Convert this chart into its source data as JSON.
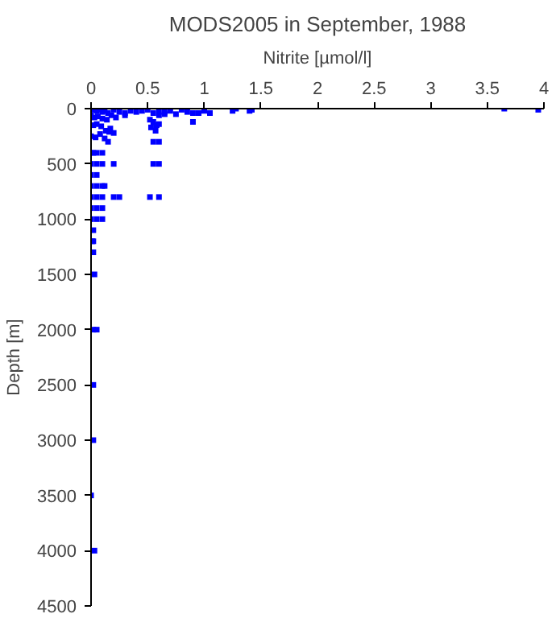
{
  "chart_data": {
    "type": "scatter",
    "title": "MODS2005 in September, 1988",
    "xlabel": "Nitrite [µmol/l]",
    "ylabel": "Depth [m]",
    "xlim": [
      0,
      4
    ],
    "ylim": [
      4500,
      0
    ],
    "xticks": [
      0,
      0.5,
      1,
      1.5,
      2,
      2.5,
      3,
      3.5,
      4
    ],
    "yticks": [
      0,
      500,
      1000,
      1500,
      2000,
      2500,
      3000,
      3500,
      4000,
      4500
    ],
    "grid": false,
    "marker": "square",
    "series": [
      {
        "color": "#0000ff",
        "x": [
          0.02,
          0.05,
          0.08,
          0.1,
          0.12,
          0.15,
          0.2,
          0.25,
          0.3,
          0.35,
          0.4,
          0.45,
          0.5,
          0.55,
          0.6,
          0.65,
          0.7,
          0.75,
          0.8,
          0.85,
          0.9,
          0.95,
          1.0,
          1.05,
          1.25,
          1.28,
          1.4,
          1.42,
          3.65,
          3.95,
          0,
          0.03,
          0.06,
          0.1,
          0.14,
          0.18,
          0.22,
          0.3,
          0.02,
          0.05,
          0.09,
          0.13,
          0.17,
          0.0,
          0.04,
          0.08,
          0.12,
          0.16,
          0.2,
          0.6,
          0.65,
          0.9,
          0.52,
          0.55,
          0.58,
          0.53,
          0.57,
          0.6,
          0.55,
          0.6,
          0.55,
          0.6,
          0.52,
          0.6,
          0,
          0.02,
          0.05,
          0.1,
          0.15,
          0,
          0.05,
          0.1,
          0.2,
          0,
          0.05,
          0,
          0.05,
          0.1,
          0.12,
          0,
          0.05,
          0.1,
          0.2,
          0.25,
          0,
          0.05,
          0.1,
          0,
          0.05,
          0.1,
          0.02,
          0.02,
          0.01,
          0.02,
          0.03,
          0.02,
          0.05,
          0.02,
          0.02,
          0.0,
          0.03
        ],
        "values": [
          10,
          20,
          10,
          30,
          20,
          40,
          10,
          30,
          40,
          20,
          30,
          20,
          10,
          40,
          30,
          30,
          20,
          50,
          10,
          30,
          120,
          40,
          20,
          40,
          20,
          0,
          20,
          10,
          0,
          10,
          60,
          80,
          70,
          90,
          100,
          60,
          80,
          60,
          150,
          140,
          160,
          200,
          180,
          250,
          260,
          230,
          270,
          210,
          220,
          60,
          50,
          40,
          100,
          120,
          150,
          170,
          200,
          140,
          300,
          300,
          500,
          500,
          800,
          800,
          400,
          400,
          400,
          400,
          300,
          500,
          500,
          500,
          500,
          600,
          600,
          700,
          700,
          700,
          700,
          800,
          800,
          800,
          800,
          800,
          900,
          900,
          900,
          1000,
          1000,
          1000,
          1100,
          1200,
          1200,
          1300,
          1500,
          2000,
          2000,
          2500,
          3000,
          3500,
          4000
        ]
      }
    ]
  }
}
